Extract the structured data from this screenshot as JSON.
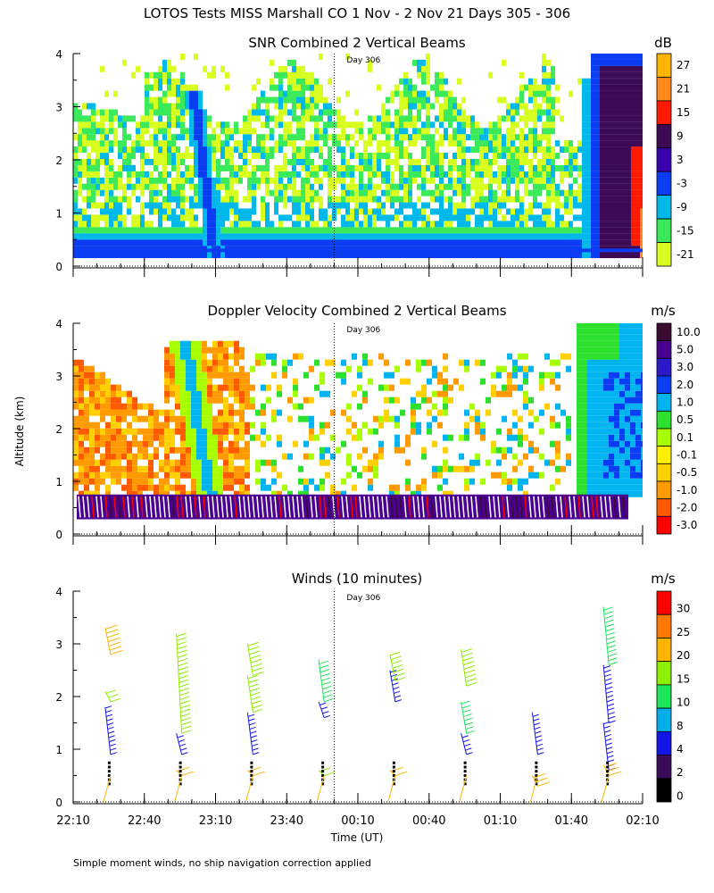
{
  "header": {
    "title": "LOTOS Tests MISS Marshall CO    1 Nov -  2 Nov 21 Days 305 - 306",
    "footnote": "Simple moment winds, no ship navigation correction applied"
  },
  "axes": {
    "ylabel": "Altitude (km)",
    "xlabel": "Time (UT)",
    "x_tick_labels": [
      "22:10",
      "22:40",
      "23:10",
      "23:40",
      "00:10",
      "00:40",
      "01:10",
      "01:40",
      "02:10"
    ],
    "y_tick_labels": [
      "0",
      "1",
      "2",
      "3",
      "4"
    ],
    "day_marker_label": "Day 306"
  },
  "colors": {
    "rainbow": [
      "#d7ff1f",
      "#3bea5a",
      "#00b8ea",
      "#0a3cf2",
      "#3a00b0",
      "#3d0a55",
      "#ff1a00",
      "#ff8a1a",
      "#ffb400"
    ],
    "velocity": [
      "#ff0000",
      "#ff5a00",
      "#ff9a00",
      "#ffd000",
      "#fff000",
      "#a8ff00",
      "#2de02d",
      "#00b4f0",
      "#0a3cf2",
      "#2a18c8",
      "#4a0090",
      "#3a0a30"
    ],
    "wind": [
      "#000000",
      "#3c0a5a",
      "#1414e6",
      "#00aeea",
      "#1ee65a",
      "#8cf000",
      "#ffb400",
      "#ff7800",
      "#ff0000"
    ]
  },
  "chart_data": [
    {
      "type": "heatmap",
      "title": "SNR Combined 2 Vertical Beams",
      "units": "dB",
      "colorbar_labels": [
        "27",
        "21",
        "15",
        "9",
        "3",
        "-3",
        "-9",
        "-15",
        "-21"
      ],
      "xlim": [
        "22:10",
        "02:10"
      ],
      "ylim": [
        0,
        4
      ],
      "ylabel": "Altitude (km)"
    },
    {
      "type": "heatmap",
      "title": "Doppler Velocity Combined 2 Vertical Beams",
      "units": "m/s",
      "colorbar_labels": [
        "10.0",
        "5.0",
        "3.0",
        "2.0",
        "1.0",
        "0.5",
        "0.1",
        "-0.1",
        "-0.5",
        "-1.0",
        "-2.0",
        "-3.0"
      ],
      "xlim": [
        "22:10",
        "02:10"
      ],
      "ylim": [
        0,
        4
      ]
    },
    {
      "type": "scatter",
      "title": "Winds (10 minutes)",
      "units": "m/s",
      "colorbar_labels": [
        "30",
        "25",
        "20",
        "15",
        "10",
        "8",
        "4",
        "2",
        "0"
      ],
      "xlim": [
        "22:10",
        "02:10"
      ],
      "ylim": [
        0,
        4
      ],
      "xlabel": "Time (UT)",
      "profile_times": [
        "22:25",
        "22:55",
        "23:25",
        "23:55",
        "00:25",
        "00:55",
        "01:25",
        "01:55"
      ],
      "profiles": [
        {
          "time": "22:25",
          "segments": [
            {
              "range": [
                0.9,
                1.8
              ],
              "speed": 4
            },
            {
              "range": [
                1.9,
                2.1
              ],
              "speed": 15
            },
            {
              "range": [
                2.8,
                3.3
              ],
              "speed": 22
            }
          ]
        },
        {
          "time": "22:55",
          "segments": [
            {
              "range": [
                0.9,
                1.3
              ],
              "speed": 4
            },
            {
              "range": [
                1.3,
                3.2
              ],
              "speed": 15
            },
            {
              "range": [
                0.5,
                0.6
              ],
              "speed": 22
            }
          ]
        },
        {
          "time": "23:25",
          "segments": [
            {
              "range": [
                0.9,
                1.7
              ],
              "speed": 4
            },
            {
              "range": [
                1.7,
                2.4
              ],
              "speed": 15
            },
            {
              "range": [
                2.4,
                3.0
              ],
              "speed": 18
            },
            {
              "range": [
                0.5,
                0.6
              ],
              "speed": 22
            }
          ]
        },
        {
          "time": "23:55",
          "segments": [
            {
              "range": [
                1.6,
                1.9
              ],
              "speed": 4
            },
            {
              "range": [
                1.9,
                2.7
              ],
              "speed": 13
            },
            {
              "range": [
                0.5,
                0.6
              ],
              "speed": 18
            }
          ]
        },
        {
          "time": "00:25",
          "segments": [
            {
              "range": [
                1.9,
                2.5
              ],
              "speed": 4
            },
            {
              "range": [
                2.3,
                2.8
              ],
              "speed": 16
            },
            {
              "range": [
                0.5,
                0.6
              ],
              "speed": 22
            }
          ]
        },
        {
          "time": "00:55",
          "segments": [
            {
              "range": [
                0.9,
                1.3
              ],
              "speed": 4
            },
            {
              "range": [
                1.3,
                1.9
              ],
              "speed": 10
            },
            {
              "range": [
                2.2,
                2.9
              ],
              "speed": 18
            }
          ]
        },
        {
          "time": "01:25",
          "segments": [
            {
              "range": [
                0.9,
                1.7
              ],
              "speed": 4
            },
            {
              "range": [
                0.3,
                0.5
              ],
              "speed": 22
            }
          ]
        },
        {
          "time": "01:55",
          "segments": [
            {
              "range": [
                0.6,
                1.5
              ],
              "speed": 4
            },
            {
              "range": [
                1.5,
                2.6
              ],
              "speed": 6
            },
            {
              "range": [
                2.6,
                3.7
              ],
              "speed": 12
            },
            {
              "range": [
                0.5,
                0.7
              ],
              "speed": 22
            }
          ]
        }
      ]
    }
  ]
}
